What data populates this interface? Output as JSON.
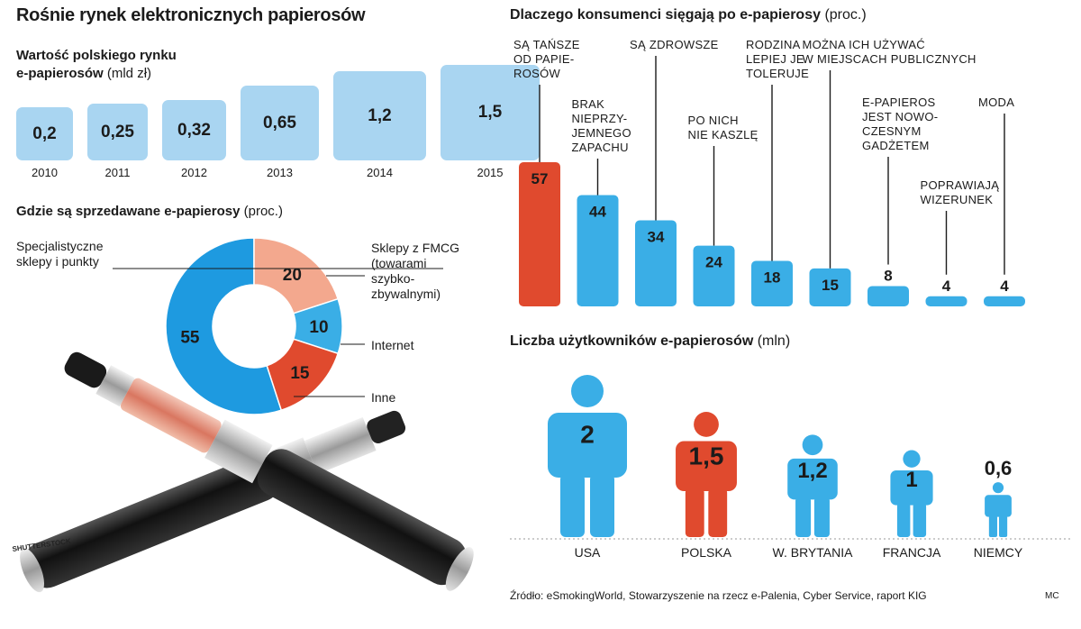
{
  "main_title": "Rośnie rynek elektronicznych papierosów",
  "credits": {
    "photo": "SHUTTERSTOCK",
    "author": "MC"
  },
  "source": "Źródło: eSmokingWorld, Stowarzyszenie na rzecz e-Palenia, Cyber Service, raport KIG",
  "colors": {
    "light_blue": "#a9d5f1",
    "blue": "#3aaee6",
    "donut_blue": "#1e9ae0",
    "red": "#e04a2e",
    "salmon": "#f3a88e"
  },
  "chart_data": [
    {
      "type": "bar",
      "title": "Wartość polskiego rynku e-papierosów",
      "title_line1": "Wartość polskiego rynku",
      "title_line2": "e-papierosów",
      "unit": "(mld zł)",
      "categories": [
        "2010",
        "2011",
        "2012",
        "2013",
        "2014",
        "2015"
      ],
      "values": [
        0.2,
        0.25,
        0.32,
        0.65,
        1.2,
        1.5
      ],
      "value_labels": [
        "0,2",
        "0,25",
        "0,32",
        "0,65",
        "1,2",
        "1,5"
      ]
    },
    {
      "type": "pie",
      "title": "Gdzie są sprzedawane e-papierosy",
      "unit": "(proc.)",
      "slices": [
        {
          "label": "Specjalistyczne sklepy i punkty",
          "lines": [
            "Specjalistyczne",
            "sklepy i punkty"
          ],
          "value": 55,
          "color": "#1e9ae0"
        },
        {
          "label": "Sklepy z FMCG (towarami szybkozbywalnymi)",
          "lines": [
            "Sklepy z FMCG",
            "(towarami",
            "szybko-",
            "zbywalnymi)"
          ],
          "value": 20,
          "color": "#f3a88e"
        },
        {
          "label": "Internet",
          "lines": [
            "Internet"
          ],
          "value": 10,
          "color": "#3aaee6"
        },
        {
          "label": "Inne",
          "lines": [
            "Inne"
          ],
          "value": 15,
          "color": "#e04a2e"
        }
      ]
    },
    {
      "type": "bar",
      "title": "Dlaczego konsumenci sięgają po e-papierosy",
      "unit": "(proc.)",
      "categories": [
        "Są tańsze od papierosów",
        "Brak nieprzyjemnego zapachu",
        "Są zdrowsze",
        "Po nich nie kaszlę",
        "Rodzina lepiej je toleruje",
        "Można ich używać w miejscach publicznych",
        "E-papieros jest nowoczesnym gadżetem",
        "Poprawiają wizerunek",
        "Moda"
      ],
      "label_lines": [
        [
          "SĄ TAŃSZE",
          "OD PAPIE-",
          "ROSÓW"
        ],
        [
          "BRAK",
          "NIEPRZY-",
          "JEMNEGO",
          "ZAPACHU"
        ],
        [
          "SĄ ZDROWSZE"
        ],
        [
          "PO NICH",
          "NIE KASZLĘ"
        ],
        [
          "RODZINA",
          "LEPIEJ JE",
          "TOLERUJE"
        ],
        [
          "MOŻNA ICH UŻYWAĆ",
          "W MIEJSCACH PUBLICZNYCH"
        ],
        [
          "E-PAPIEROS",
          "JEST NOWO-",
          "CZESNYM",
          "GADŻETEM"
        ],
        [
          "POPRAWIAJĄ",
          "WIZERUNEK"
        ],
        [
          "MODA"
        ]
      ],
      "values": [
        57,
        44,
        34,
        24,
        18,
        15,
        8,
        4,
        4
      ],
      "highlight_index": 0
    },
    {
      "type": "bar",
      "title": "Liczba użytkowników e-papierosów",
      "unit": "(mln)",
      "categories": [
        "USA",
        "POLSKA",
        "W. BRYTANIA",
        "FRANCJA",
        "NIEMCY"
      ],
      "values": [
        2,
        1.5,
        1.2,
        1,
        0.6
      ],
      "value_labels": [
        "2",
        "1,5",
        "1,2",
        "1",
        "0,6"
      ],
      "highlight_index": 1
    }
  ]
}
